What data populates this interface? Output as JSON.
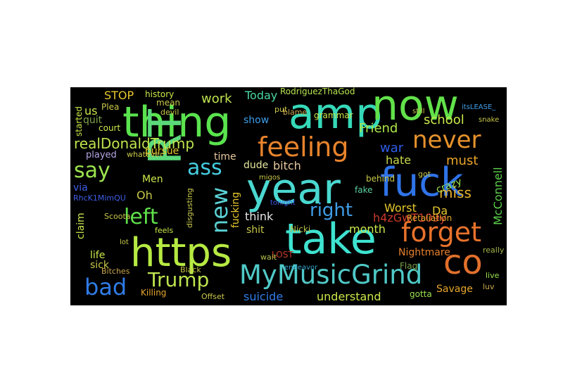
{
  "word_cloud": {
    "background": "#000000",
    "words": [
      {
        "text": "thing",
        "color": "#5ae34e"
      },
      {
        "text": "amp",
        "color": "#35d9b8"
      },
      {
        "text": "now",
        "color": "#62e24a"
      },
      {
        "text": "RT",
        "color": "#5bd97a"
      },
      {
        "text": "year",
        "color": "#4ad8d0"
      },
      {
        "text": "fuck",
        "color": "#2f73e8"
      },
      {
        "text": "take",
        "color": "#3ee3d0"
      },
      {
        "text": "https",
        "color": "#b6ea43"
      },
      {
        "text": "co",
        "color": "#e2702c"
      },
      {
        "text": "MyMusicGrind",
        "color": "#4fc9c7"
      },
      {
        "text": "feeling",
        "color": "#e8832c"
      },
      {
        "text": "forget",
        "color": "#e9722c"
      },
      {
        "text": "never",
        "color": "#e6922c"
      },
      {
        "text": "ass",
        "color": "#45cde0"
      },
      {
        "text": "new",
        "color": "#5bd1d4"
      },
      {
        "text": "left",
        "color": "#5fe04a"
      },
      {
        "text": "say",
        "color": "#9be34e"
      },
      {
        "text": "bad",
        "color": "#2f7ce8"
      },
      {
        "text": "Trump",
        "color": "#bde34e"
      },
      {
        "text": "right",
        "color": "#3f9de8"
      },
      {
        "text": "realDonaldTrump",
        "color": "#bde34e"
      },
      {
        "text": "school",
        "color": "#c9e84a"
      },
      {
        "text": "Friend",
        "color": "#ade84a"
      },
      {
        "text": "miss",
        "color": "#e6b12c"
      },
      {
        "text": "must",
        "color": "#e9a42c"
      },
      {
        "text": "war",
        "color": "#2f5de8"
      },
      {
        "text": "hate",
        "color": "#c9d74a"
      },
      {
        "text": "crazy",
        "color": "#9be34e"
      },
      {
        "text": "McConnell",
        "color": "#5bd04a"
      },
      {
        "text": "h4zGwT109y",
        "color": "#c93a2c"
      },
      {
        "text": "Worst",
        "color": "#e6c82c"
      },
      {
        "text": "Da",
        "color": "#e6c82c"
      },
      {
        "text": "month",
        "color": "#c9e84a"
      },
      {
        "text": "Nightmare",
        "color": "#e6802c"
      },
      {
        "text": "Savage",
        "color": "#e6a62c"
      },
      {
        "text": "understand",
        "color": "#c9e84a"
      },
      {
        "text": "suicide",
        "color": "#2f7ce8"
      },
      {
        "text": "Flag",
        "color": "#7ba24a"
      },
      {
        "text": "endeavor",
        "color": "#35a3c8"
      },
      {
        "text": "really",
        "color": "#a6b44a"
      },
      {
        "text": "luv",
        "color": "#c9a64a"
      },
      {
        "text": "live",
        "color": "#9be34e"
      },
      {
        "text": "gotta",
        "color": "#9be34e"
      },
      {
        "text": "LOST",
        "color": "#c93a2c"
      },
      {
        "text": "wait",
        "color": "#b6c04a"
      },
      {
        "text": "Retaliation",
        "color": "#e6a62c"
      },
      {
        "text": "fake",
        "color": "#5bd0a0"
      },
      {
        "text": "Nicki",
        "color": "#b6c04a"
      },
      {
        "text": "work",
        "color": "#bde34e"
      },
      {
        "text": "Today",
        "color": "#4ad8a0"
      },
      {
        "text": "RodriguezThaGod",
        "color": "#b6e34e"
      },
      {
        "text": "show",
        "color": "#3f9de8"
      },
      {
        "text": "think",
        "color": "#e6e6e6"
      },
      {
        "text": "dude",
        "color": "#e6e6a0"
      },
      {
        "text": "bitch",
        "color": "#e6c8a0"
      },
      {
        "text": "fucking",
        "color": "#e6c82c"
      },
      {
        "text": "shit",
        "color": "#c9c84a"
      },
      {
        "text": "migos",
        "color": "#c9c84a"
      },
      {
        "text": "time",
        "color": "#e6c8a0"
      },
      {
        "text": "pursue",
        "color": "#e6c82c"
      },
      {
        "text": "played",
        "color": "#b6a6e6"
      },
      {
        "text": "whatever",
        "color": "#c9c84a"
      },
      {
        "text": "us",
        "color": "#c9e84a"
      },
      {
        "text": "quit",
        "color": "#7ba24a"
      },
      {
        "text": "court",
        "color": "#c9e84a"
      },
      {
        "text": "STOP",
        "color": "#e6c82c"
      },
      {
        "text": "history",
        "color": "#c9e84a"
      },
      {
        "text": "mean",
        "color": "#c9c84a"
      },
      {
        "text": "devil",
        "color": "#c9c84a"
      },
      {
        "text": "Plea",
        "color": "#c9c84a"
      },
      {
        "text": "started",
        "color": "#c9e84a"
      },
      {
        "text": "Men",
        "color": "#c9e84a"
      },
      {
        "text": "via",
        "color": "#3f5de8"
      },
      {
        "text": "Oh",
        "color": "#c9c84a"
      },
      {
        "text": "RhcK1MimQU",
        "color": "#3f5de8"
      },
      {
        "text": "claim",
        "color": "#c9e84a"
      },
      {
        "text": "life",
        "color": "#c9e84a"
      },
      {
        "text": "sick",
        "color": "#c9c84a"
      },
      {
        "text": "lot",
        "color": "#c9c84a"
      },
      {
        "text": "Scoota",
        "color": "#c9c84a"
      },
      {
        "text": "Bitches",
        "color": "#c9a64a"
      },
      {
        "text": "Killing",
        "color": "#e6a62c"
      },
      {
        "text": "Black",
        "color": "#c9c84a"
      },
      {
        "text": "feels",
        "color": "#c9e84a"
      },
      {
        "text": "disgusting",
        "color": "#c9c84a"
      },
      {
        "text": "Offset",
        "color": "#c9c84a"
      },
      {
        "text": "tonight",
        "color": "#3f5de8"
      },
      {
        "text": "put",
        "color": "#c9c84a"
      },
      {
        "text": "blame",
        "color": "#c9a64a"
      },
      {
        "text": "grammar",
        "color": "#c9e84a"
      },
      {
        "text": "itsLEASE_",
        "color": "#3f9de8"
      },
      {
        "text": "snake",
        "color": "#c9c84a"
      },
      {
        "text": "got",
        "color": "#c9c84a"
      },
      {
        "text": "behind",
        "color": "#c9c84a"
      },
      {
        "text": "still",
        "color": "#c9c84a"
      }
    ]
  }
}
